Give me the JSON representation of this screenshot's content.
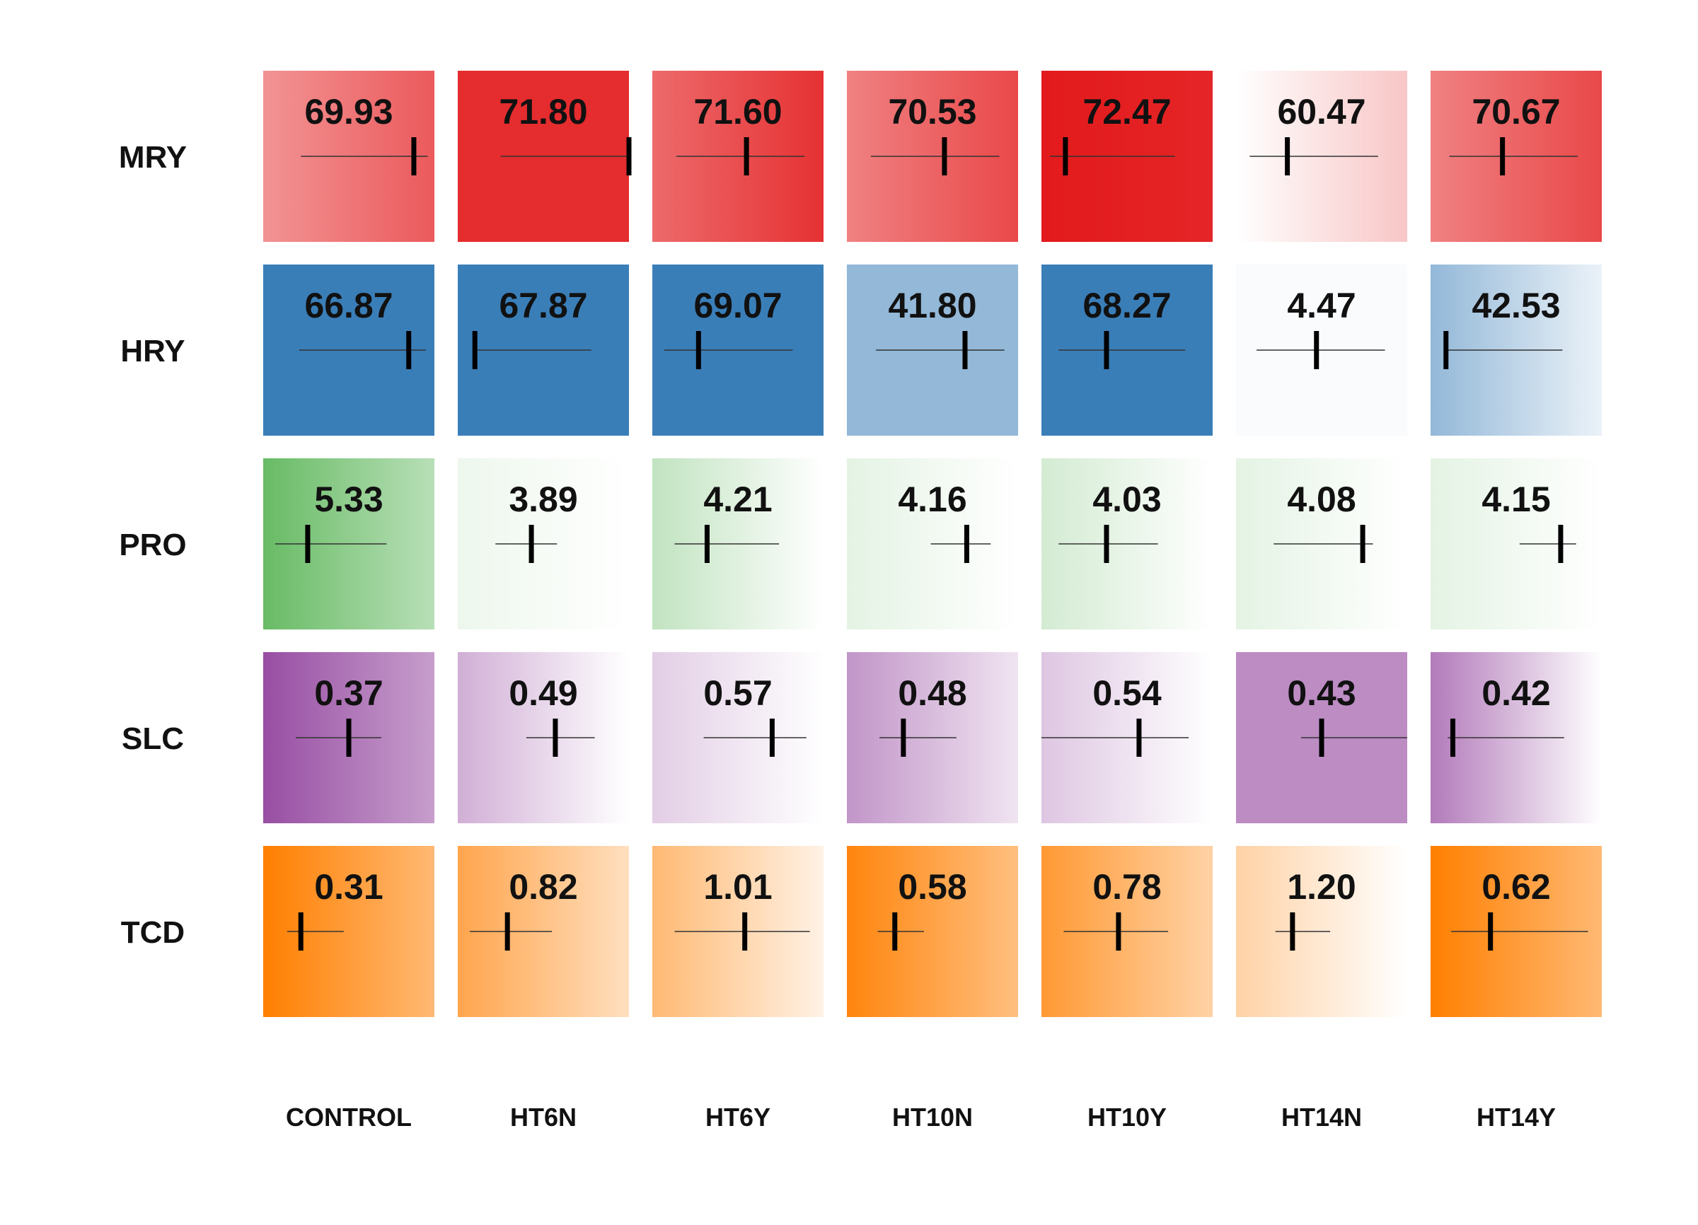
{
  "chart_data": {
    "type": "heatmap",
    "title": "",
    "columns": [
      "CONTROL",
      "HT6N",
      "HT6Y",
      "HT10N",
      "HT10Y",
      "HT14N",
      "HT14Y"
    ],
    "rows": [
      {
        "name": "MRY",
        "color": "#E31A1C",
        "values": [
          "69.93",
          "71.80",
          "71.60",
          "70.53",
          "72.47",
          "60.47",
          "70.67"
        ],
        "intensity": [
          0.72,
          0.92,
          0.9,
          0.8,
          1.0,
          0.0,
          0.8
        ],
        "gradient": [
          "left",
          "none",
          "left",
          "left",
          "right",
          "right",
          "left"
        ],
        "markers": [
          {
            "min": 0.22,
            "max": 0.96,
            "mark": 0.88
          },
          {
            "min": 0.25,
            "max": 1.0,
            "mark": 1.0
          },
          {
            "min": 0.14,
            "max": 0.89,
            "mark": 0.55
          },
          {
            "min": 0.14,
            "max": 0.89,
            "mark": 0.57
          },
          {
            "min": 0.05,
            "max": 0.78,
            "mark": 0.14
          },
          {
            "min": 0.08,
            "max": 0.83,
            "mark": 0.3
          },
          {
            "min": 0.11,
            "max": 0.86,
            "mark": 0.42
          }
        ]
      },
      {
        "name": "HRY",
        "color": "#3A7EB8",
        "values": [
          "66.87",
          "67.87",
          "69.07",
          "41.80",
          "68.27",
          "4.47",
          "42.53"
        ],
        "intensity": [
          1.0,
          1.0,
          1.0,
          0.55,
          1.0,
          0.03,
          0.55
        ],
        "gradient": [
          "none",
          "none",
          "none",
          "none",
          "none",
          "none",
          "right"
        ],
        "markers": [
          {
            "min": 0.21,
            "max": 0.95,
            "mark": 0.85
          },
          {
            "min": 0.1,
            "max": 0.78,
            "mark": 0.1
          },
          {
            "min": 0.07,
            "max": 0.82,
            "mark": 0.27
          },
          {
            "min": 0.17,
            "max": 0.92,
            "mark": 0.69
          },
          {
            "min": 0.1,
            "max": 0.84,
            "mark": 0.38
          },
          {
            "min": 0.12,
            "max": 0.87,
            "mark": 0.47
          },
          {
            "min": 0.08,
            "max": 0.77,
            "mark": 0.09
          }
        ]
      },
      {
        "name": "PRO",
        "color": "#4DAF4A",
        "values": [
          "5.33",
          "3.89",
          "4.21",
          "4.16",
          "4.03",
          "4.08",
          "4.15"
        ],
        "intensity": [
          0.85,
          0.1,
          0.35,
          0.15,
          0.25,
          0.15,
          0.15
        ],
        "gradient": [
          "right",
          "right",
          "right",
          "right",
          "right",
          "right",
          "right"
        ],
        "markers": [
          {
            "min": 0.07,
            "max": 0.72,
            "mark": 0.26
          },
          {
            "min": 0.22,
            "max": 0.58,
            "mark": 0.43
          },
          {
            "min": 0.13,
            "max": 0.74,
            "mark": 0.32
          },
          {
            "min": 0.49,
            "max": 0.84,
            "mark": 0.7
          },
          {
            "min": 0.1,
            "max": 0.68,
            "mark": 0.38
          },
          {
            "min": 0.22,
            "max": 0.8,
            "mark": 0.74
          },
          {
            "min": 0.52,
            "max": 0.85,
            "mark": 0.76
          }
        ]
      },
      {
        "name": "SLC",
        "color": "#984EA3",
        "values": [
          "0.37",
          "0.49",
          "0.57",
          "0.48",
          "0.54",
          "0.43",
          "0.42"
        ],
        "intensity": [
          1.0,
          0.45,
          0.28,
          0.6,
          0.32,
          0.65,
          0.75
        ],
        "gradient": [
          "right",
          "right",
          "right",
          "right",
          "right",
          "none",
          "right-fade"
        ],
        "markers": [
          {
            "min": 0.19,
            "max": 0.69,
            "mark": 0.5
          },
          {
            "min": 0.4,
            "max": 0.8,
            "mark": 0.57
          },
          {
            "min": 0.3,
            "max": 0.9,
            "mark": 0.7
          },
          {
            "min": 0.19,
            "max": 0.64,
            "mark": 0.33
          },
          {
            "min": 0.0,
            "max": 0.86,
            "mark": 0.57
          },
          {
            "min": 0.38,
            "max": 1.0,
            "mark": 0.5
          },
          {
            "min": 0.1,
            "max": 0.78,
            "mark": 0.13
          }
        ]
      },
      {
        "name": "TCD",
        "color": "#FF7F00",
        "values": [
          "0.31",
          "0.82",
          "1.01",
          "0.58",
          "0.78",
          "1.20",
          "0.62"
        ],
        "intensity": [
          1.0,
          0.7,
          0.55,
          0.95,
          0.8,
          0.35,
          1.0
        ],
        "gradient": [
          "right",
          "right",
          "right",
          "right",
          "right",
          "right",
          "right"
        ],
        "markers": [
          {
            "min": 0.14,
            "max": 0.47,
            "mark": 0.22
          },
          {
            "min": 0.07,
            "max": 0.55,
            "mark": 0.29
          },
          {
            "min": 0.13,
            "max": 0.92,
            "mark": 0.54
          },
          {
            "min": 0.18,
            "max": 0.45,
            "mark": 0.28
          },
          {
            "min": 0.13,
            "max": 0.74,
            "mark": 0.45
          },
          {
            "min": 0.23,
            "max": 0.55,
            "mark": 0.33
          },
          {
            "min": 0.12,
            "max": 0.92,
            "mark": 0.35
          }
        ]
      }
    ]
  }
}
